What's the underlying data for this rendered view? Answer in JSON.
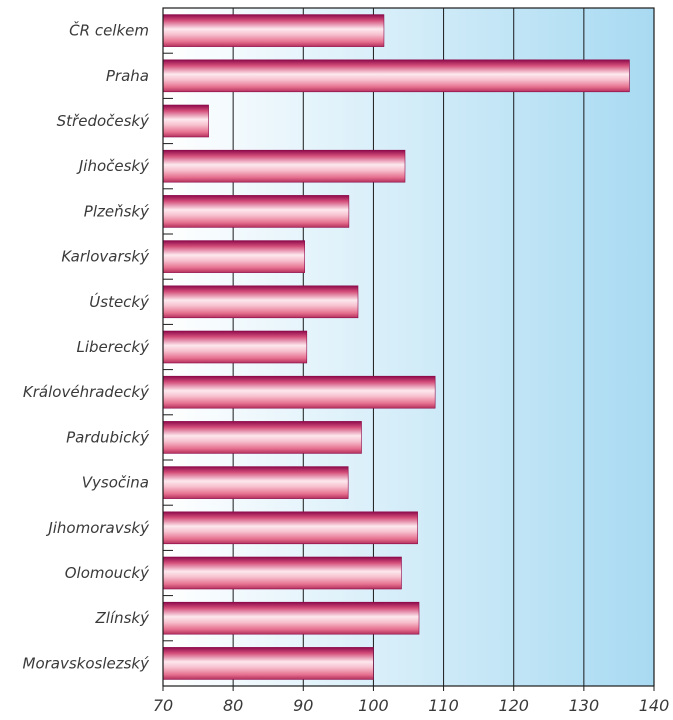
{
  "chart_data": {
    "type": "bar",
    "orientation": "horizontal",
    "categories": [
      "ČR celkem",
      "Praha",
      "Středočeský",
      "Jihočeský",
      "Plzeňský",
      "Karlovarský",
      "Ústecký",
      "Liberecký",
      "Královéhradecký",
      "Pardubický",
      "Vysočina",
      "Jihomoravský",
      "Olomoucký",
      "Zlínský",
      "Moravskoslezský"
    ],
    "values": [
      101.5,
      136.5,
      76.5,
      104.5,
      96.5,
      90.2,
      97.8,
      90.5,
      108.8,
      98.3,
      96.4,
      106.3,
      104.0,
      106.5,
      100.0
    ],
    "xlim": [
      70,
      140
    ],
    "xticks": [
      70,
      80,
      90,
      100,
      110,
      120,
      130,
      140
    ],
    "title": "",
    "xlabel": "",
    "ylabel": "",
    "grid": "vertical",
    "colors": {
      "bar_edge": "#8c0a4b",
      "bar_light": "#fde8ee",
      "bar_mid": "#e6708f",
      "bg_light": "#ffffff",
      "bg_dark": "#a8daf2",
      "grid": "#1a1a1a"
    }
  }
}
